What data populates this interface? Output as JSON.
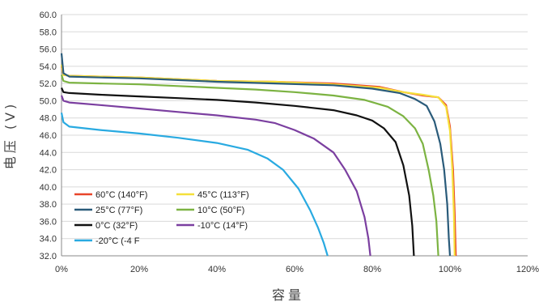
{
  "chart_data": {
    "type": "line",
    "title": "",
    "xlabel": "容量",
    "ylabel": "电压 (V)",
    "xlim": [
      0,
      120
    ],
    "ylim": [
      32,
      60
    ],
    "x_ticks": [
      "0%",
      "20%",
      "40%",
      "60%",
      "80%",
      "100%",
      "120%"
    ],
    "y_ticks": [
      "60.0",
      "58.0",
      "56.0",
      "54.0",
      "52.0",
      "50.0",
      "48.0",
      "46.0",
      "44.0",
      "42.0",
      "40.0",
      "38.0",
      "36.0",
      "34.0",
      "32.0"
    ],
    "grid": true,
    "legend_position": "bottom-left",
    "series": [
      {
        "name": "60°C (140°F)",
        "color": "#e8452a",
        "points": [
          [
            0,
            54.0
          ],
          [
            0.5,
            53.0
          ],
          [
            2,
            52.9
          ],
          [
            10,
            52.8
          ],
          [
            20,
            52.7
          ],
          [
            30,
            52.5
          ],
          [
            40,
            52.3
          ],
          [
            55,
            52.2
          ],
          [
            70,
            52.0
          ],
          [
            82,
            51.6
          ],
          [
            88,
            51.0
          ],
          [
            93,
            50.6
          ],
          [
            97,
            50.4
          ],
          [
            99,
            49.5
          ],
          [
            100,
            47.0
          ],
          [
            100.8,
            42.0
          ],
          [
            101.2,
            37.0
          ],
          [
            101.5,
            32.0
          ]
        ]
      },
      {
        "name": "45°C (113°F)",
        "color": "#f5e03a",
        "points": [
          [
            0,
            54.2
          ],
          [
            0.5,
            53.0
          ],
          [
            2,
            52.9
          ],
          [
            10,
            52.8
          ],
          [
            20,
            52.7
          ],
          [
            30,
            52.5
          ],
          [
            40,
            52.3
          ],
          [
            55,
            52.2
          ],
          [
            70,
            51.9
          ],
          [
            82,
            51.5
          ],
          [
            88,
            51.0
          ],
          [
            93,
            50.7
          ],
          [
            97,
            50.4
          ],
          [
            99,
            49.3
          ],
          [
            100,
            46.5
          ],
          [
            100.6,
            42.0
          ],
          [
            101,
            37.0
          ],
          [
            101.2,
            32.0
          ]
        ]
      },
      {
        "name": "25°C (77°F)",
        "color": "#2a5b7a",
        "points": [
          [
            0,
            55.5
          ],
          [
            0.5,
            53.2
          ],
          [
            2,
            52.8
          ],
          [
            10,
            52.7
          ],
          [
            20,
            52.6
          ],
          [
            30,
            52.4
          ],
          [
            40,
            52.2
          ],
          [
            55,
            52.0
          ],
          [
            70,
            51.8
          ],
          [
            80,
            51.4
          ],
          [
            87,
            50.9
          ],
          [
            91,
            50.2
          ],
          [
            94,
            49.4
          ],
          [
            96,
            47.6
          ],
          [
            97.5,
            45.0
          ],
          [
            98.5,
            42.0
          ],
          [
            99.3,
            38.0
          ],
          [
            99.7,
            34.0
          ],
          [
            100,
            32.0
          ]
        ]
      },
      {
        "name": "10°C (50°F)",
        "color": "#7cb342",
        "points": [
          [
            0,
            53.0
          ],
          [
            0.5,
            52.3
          ],
          [
            2,
            52.1
          ],
          [
            10,
            52.0
          ],
          [
            20,
            51.9
          ],
          [
            30,
            51.7
          ],
          [
            40,
            51.5
          ],
          [
            50,
            51.3
          ],
          [
            60,
            51.0
          ],
          [
            70,
            50.6
          ],
          [
            78,
            50.1
          ],
          [
            84,
            49.3
          ],
          [
            88,
            48.2
          ],
          [
            91,
            46.8
          ],
          [
            93,
            45.0
          ],
          [
            94.5,
            42.0
          ],
          [
            95.7,
            39.0
          ],
          [
            96.5,
            36.0
          ],
          [
            97,
            32.0
          ]
        ]
      },
      {
        "name": "0°C (32°F)",
        "color": "#111111",
        "points": [
          [
            0,
            51.5
          ],
          [
            0.5,
            51.0
          ],
          [
            2,
            50.9
          ],
          [
            10,
            50.7
          ],
          [
            20,
            50.5
          ],
          [
            30,
            50.3
          ],
          [
            40,
            50.1
          ],
          [
            50,
            49.8
          ],
          [
            60,
            49.4
          ],
          [
            70,
            48.9
          ],
          [
            76,
            48.3
          ],
          [
            80,
            47.7
          ],
          [
            83,
            46.8
          ],
          [
            86,
            45.2
          ],
          [
            88,
            42.5
          ],
          [
            89.5,
            39.0
          ],
          [
            90.3,
            35.5
          ],
          [
            90.7,
            32.0
          ]
        ]
      },
      {
        "name": "-10°C (14°F)",
        "color": "#7b3fa0",
        "points": [
          [
            0,
            50.6
          ],
          [
            0.5,
            50.0
          ],
          [
            2,
            49.8
          ],
          [
            10,
            49.5
          ],
          [
            20,
            49.1
          ],
          [
            30,
            48.7
          ],
          [
            40,
            48.3
          ],
          [
            50,
            47.8
          ],
          [
            55,
            47.4
          ],
          [
            60,
            46.6
          ],
          [
            65,
            45.6
          ],
          [
            70,
            44.0
          ],
          [
            73,
            42.0
          ],
          [
            76,
            39.5
          ],
          [
            78,
            36.5
          ],
          [
            79,
            34.0
          ],
          [
            79.5,
            32.0
          ]
        ]
      },
      {
        "name": "-20°C (-4 F",
        "color": "#29aae1",
        "points": [
          [
            0,
            48.6
          ],
          [
            0.5,
            47.5
          ],
          [
            2,
            47.0
          ],
          [
            10,
            46.6
          ],
          [
            20,
            46.2
          ],
          [
            30,
            45.7
          ],
          [
            40,
            45.1
          ],
          [
            48,
            44.3
          ],
          [
            53,
            43.3
          ],
          [
            57,
            42.0
          ],
          [
            61,
            39.8
          ],
          [
            64,
            37.3
          ],
          [
            66,
            35.3
          ],
          [
            67.5,
            33.5
          ],
          [
            68.5,
            32.0
          ]
        ]
      }
    ]
  }
}
